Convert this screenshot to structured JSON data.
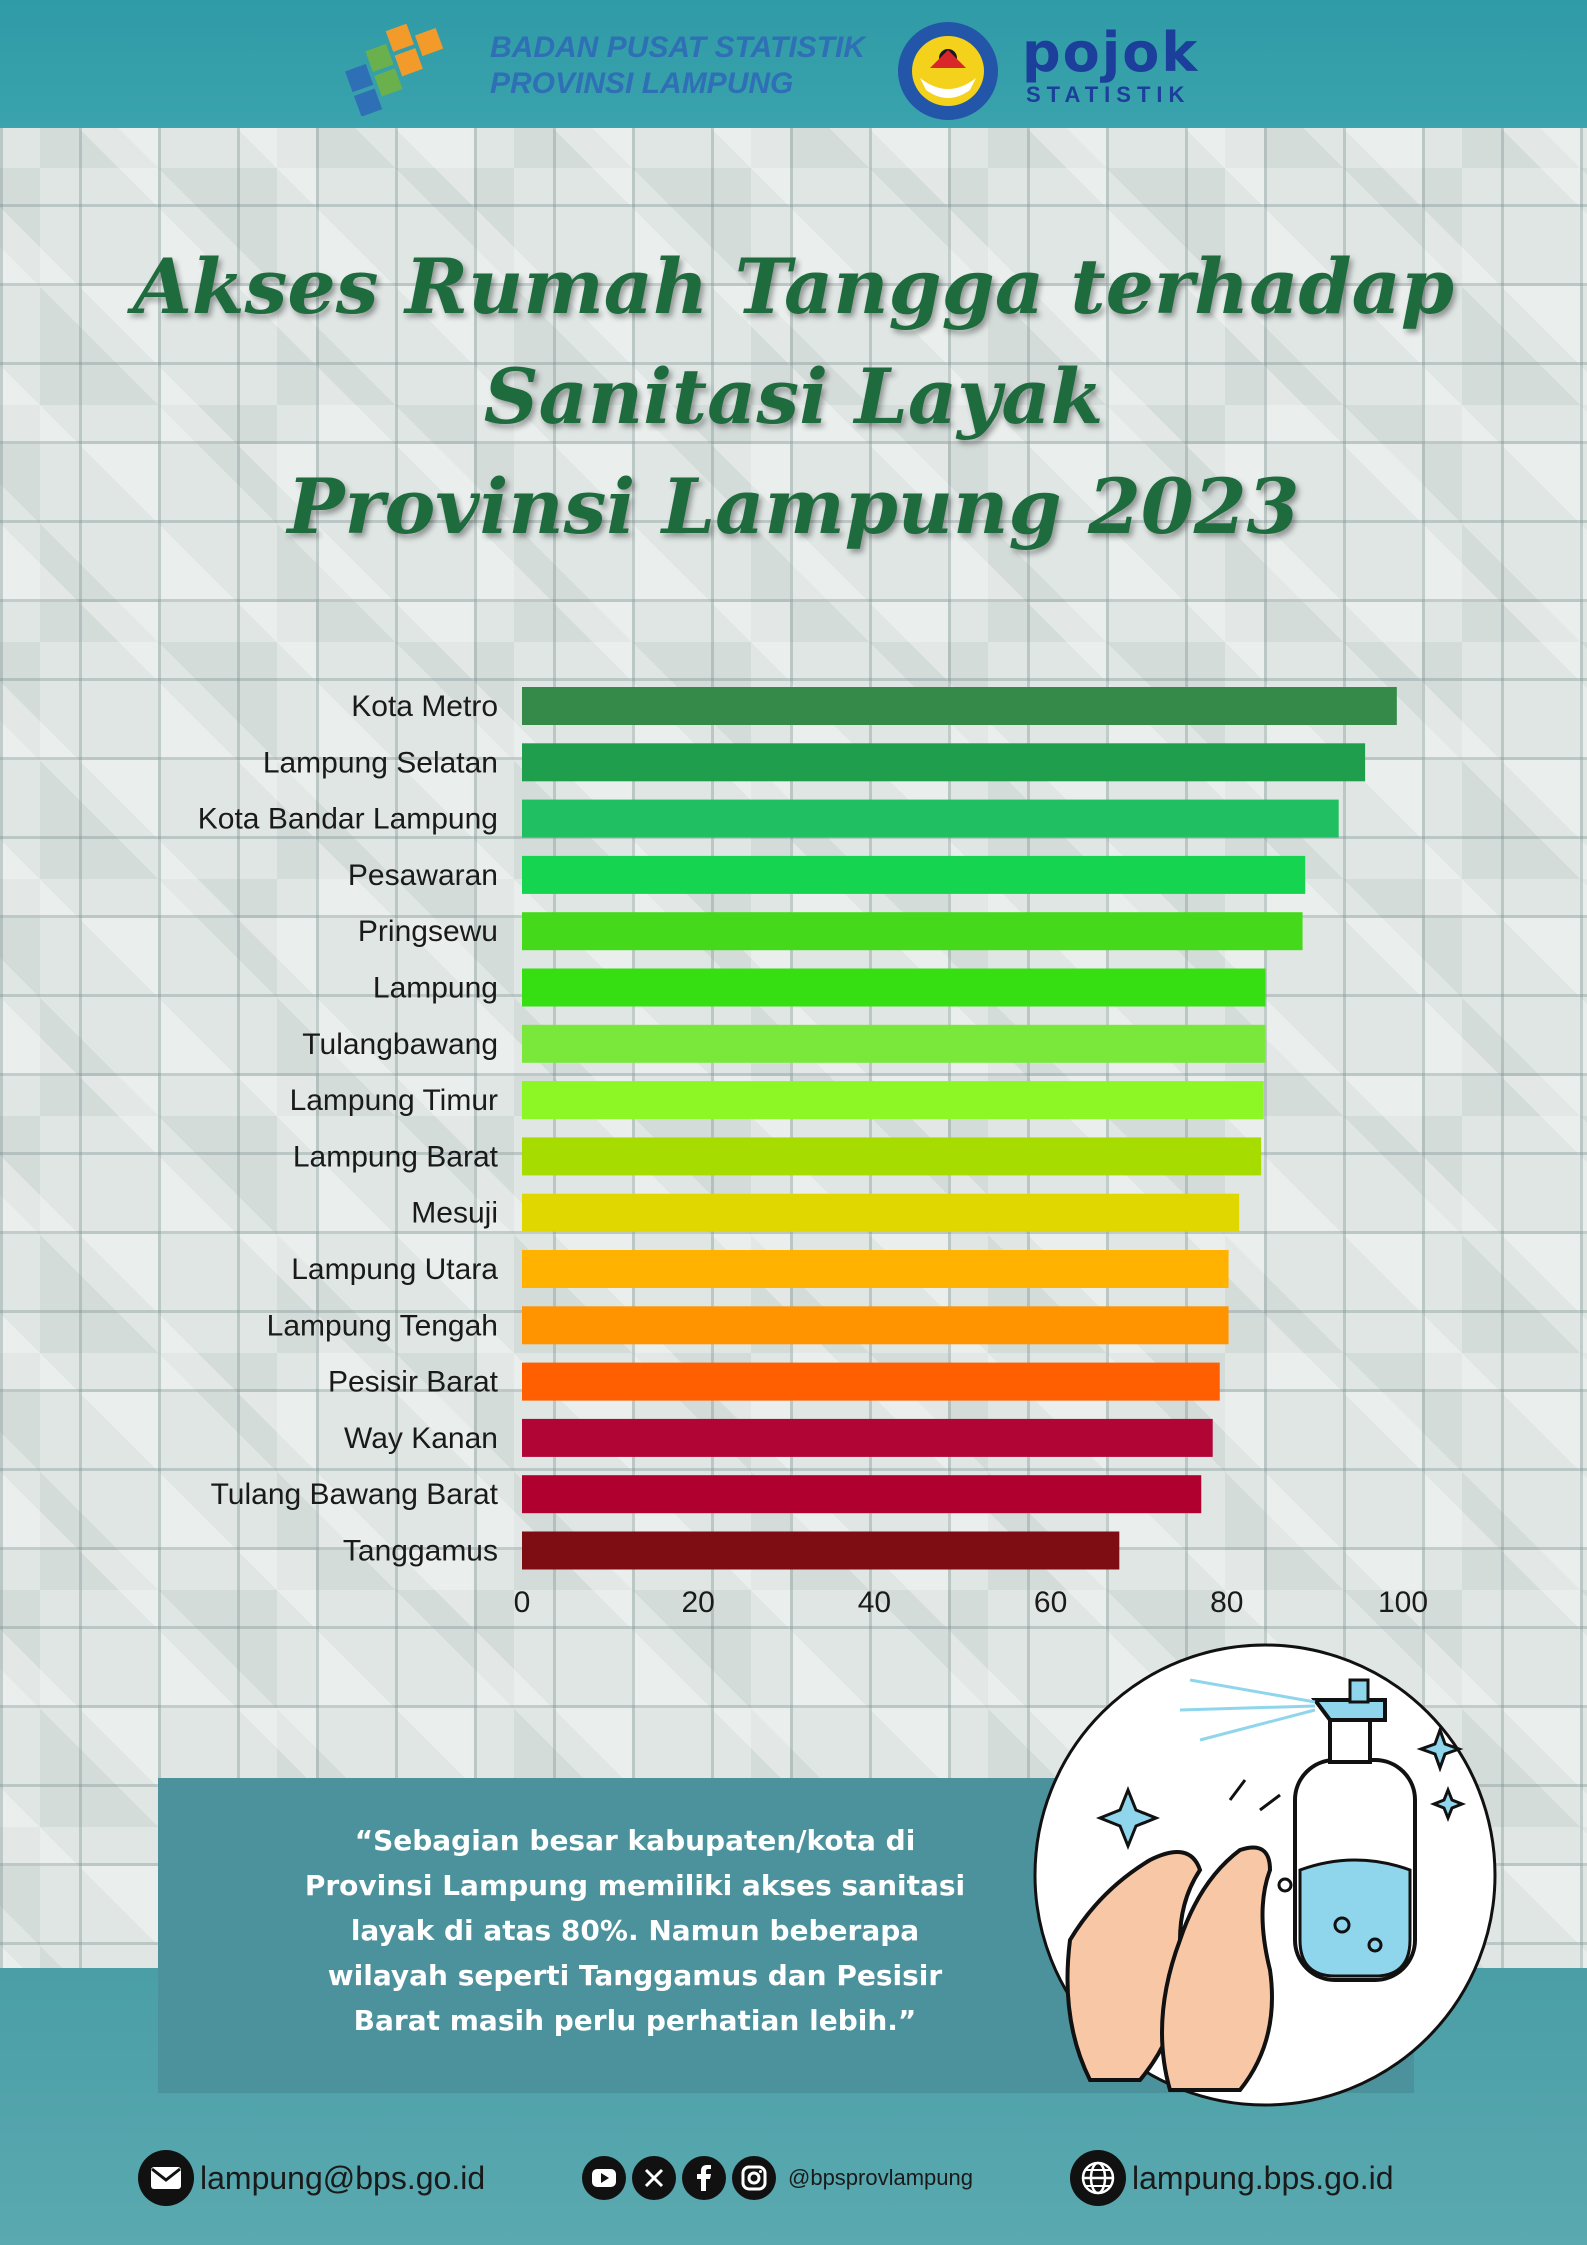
{
  "header": {
    "org_line1": "BADAN PUSAT STATISTIK",
    "org_line2": "PROVINSI LAMPUNG",
    "pojok_word": "pojok",
    "pojok_sub": "STATISTIK"
  },
  "title": {
    "line1": "Akses Rumah Tangga terhadap",
    "line2": "Sanitasi Layak",
    "line3": "Provinsi Lampung 2023"
  },
  "chart_data": {
    "type": "bar",
    "orientation": "horizontal",
    "categories": [
      "Kota Metro",
      "Lampung Selatan",
      "Kota Bandar Lampung",
      "Pesawaran",
      "Pringsewu",
      "Lampung",
      "Tulangbawang",
      "Lampung Timur",
      "Lampung Barat",
      "Mesuji",
      "Lampung Utara",
      "Lampung Tengah",
      "Pesisir Barat",
      "Way Kanan",
      "Tulang Bawang Barat",
      "Tanggamus"
    ],
    "values": [
      99.3,
      95.7,
      92.7,
      88.9,
      88.6,
      84.4,
      84.4,
      84.2,
      83.9,
      81.4,
      80.2,
      80.2,
      79.2,
      78.4,
      77.1,
      67.8
    ],
    "colors": [
      "#358a4a",
      "#1f9e4e",
      "#1fbf62",
      "#14d450",
      "#45d91b",
      "#35df12",
      "#7ae83a",
      "#8cf725",
      "#a6dc00",
      "#e0d700",
      "#ffb200",
      "#ff9300",
      "#ff5f00",
      "#b00535",
      "#b0002f",
      "#7d0d12"
    ],
    "xlim": [
      0,
      100
    ],
    "xticks": [
      "0",
      "20",
      "40",
      "60",
      "80",
      "100"
    ],
    "grid": false
  },
  "quote": "“Sebagian besar kabupaten/kota di Provinsi Lampung memiliki akses sanitasi layak di atas 80%. Namun beberapa wilayah seperti Tanggamus dan Pesisir Barat masih perlu perhatian lebih.”",
  "footer": {
    "email": "lampung@bps.go.id",
    "social": "@bpsprovlampung",
    "website": "lampung.bps.go.id"
  }
}
